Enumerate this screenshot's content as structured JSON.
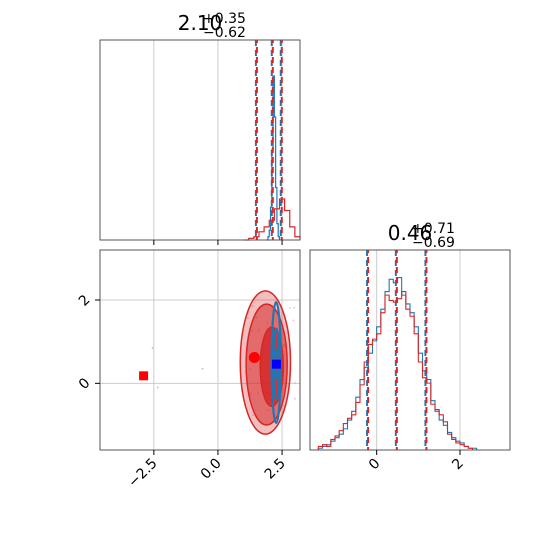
{
  "colors": {
    "truth_red": "#d62728",
    "samples_blue": "#1f77b4",
    "contour_fill_red": "#d62728",
    "marker_red": "#ff0000",
    "marker_blue": "#0000ff",
    "grid": "#cccccc",
    "axes": "#555555"
  },
  "chart_data": {
    "type": "corner",
    "parameters": [
      {
        "title_main": "2.10",
        "title_upper": "+0.35",
        "title_lower": "−0.62",
        "range": [
          -4.6,
          3.2
        ],
        "ticks": [
          -2.5,
          0.0,
          2.5
        ],
        "tick_labels": [
          "−2.5",
          "0.0",
          "2.5"
        ],
        "quantile_lines": [
          1.48,
          2.1,
          2.45
        ]
      },
      {
        "title_main": "0.46",
        "title_upper": "+0.71",
        "title_lower": "−0.69",
        "range": [
          -1.6,
          3.2
        ],
        "ticks": [
          0,
          2
        ],
        "tick_labels": [
          "0",
          "2"
        ],
        "quantile_lines": [
          -0.23,
          0.46,
          1.17
        ]
      }
    ],
    "hist_1d_x": {
      "blue": {
        "x": [
          1.9,
          1.95,
          2.0,
          2.05,
          2.1,
          2.15,
          2.2,
          2.25,
          2.3,
          2.35,
          2.4
        ],
        "density": [
          0.0,
          0.02,
          0.06,
          0.2,
          0.55,
          1.0,
          0.75,
          0.32,
          0.1,
          0.02,
          0.0
        ]
      },
      "red": {
        "x": [
          1.0,
          1.2,
          1.4,
          1.6,
          1.8,
          2.0,
          2.2,
          2.4,
          2.6,
          2.8,
          3.0,
          3.2
        ],
        "density": [
          0.0,
          0.01,
          0.02,
          0.05,
          0.08,
          0.12,
          0.19,
          0.25,
          0.18,
          0.08,
          0.02,
          0.0
        ]
      }
    },
    "hist_1d_y": {
      "bins": [
        -1.5,
        -1.4,
        -1.3,
        -1.2,
        -1.1,
        -1.0,
        -0.9,
        -0.8,
        -0.7,
        -0.6,
        -0.5,
        -0.4,
        -0.3,
        -0.2,
        -0.1,
        0.0,
        0.1,
        0.2,
        0.3,
        0.4,
        0.5,
        0.6,
        0.7,
        0.8,
        0.9,
        1.0,
        1.1,
        1.2,
        1.3,
        1.4,
        1.5,
        1.6,
        1.7,
        1.8,
        1.9,
        2.0,
        2.1,
        2.2,
        2.3,
        2.4,
        2.5
      ],
      "blue": [
        0.0,
        0.01,
        0.02,
        0.03,
        0.05,
        0.07,
        0.09,
        0.12,
        0.17,
        0.22,
        0.3,
        0.4,
        0.47,
        0.55,
        0.62,
        0.7,
        0.8,
        0.9,
        0.97,
        0.95,
        0.98,
        0.88,
        0.83,
        0.78,
        0.7,
        0.55,
        0.45,
        0.4,
        0.28,
        0.22,
        0.17,
        0.14,
        0.1,
        0.07,
        0.05,
        0.04,
        0.02,
        0.01,
        0.01,
        0.0,
        0.0
      ],
      "red": [
        0.0,
        0.02,
        0.03,
        0.02,
        0.06,
        0.08,
        0.11,
        0.15,
        0.18,
        0.2,
        0.27,
        0.37,
        0.5,
        0.6,
        0.63,
        0.66,
        0.78,
        0.88,
        0.85,
        0.84,
        0.86,
        0.9,
        0.8,
        0.76,
        0.66,
        0.5,
        0.41,
        0.38,
        0.26,
        0.23,
        0.2,
        0.16,
        0.09,
        0.06,
        0.04,
        0.03,
        0.02,
        0.01,
        0.0,
        0.0,
        0.0
      ]
    },
    "scatter_2d": {
      "blue_contours": [
        {
          "cx": 2.28,
          "cy": 0.46,
          "rx": 0.06,
          "ry": 0.35
        },
        {
          "cx": 2.28,
          "cy": 0.46,
          "rx": 0.12,
          "ry": 0.85
        },
        {
          "cx": 2.27,
          "cy": 0.5,
          "rx": 0.18,
          "ry": 1.45
        }
      ],
      "red_contours": [
        {
          "cx": 2.1,
          "cy": 0.4,
          "rx": 0.45,
          "ry": 0.95,
          "opacity": 0.85
        },
        {
          "cx": 1.9,
          "cy": 0.45,
          "rx": 0.8,
          "ry": 1.45,
          "opacity": 0.55
        },
        {
          "cx": 1.85,
          "cy": 0.5,
          "rx": 0.98,
          "ry": 1.72,
          "opacity": 0.3
        }
      ],
      "markers": [
        {
          "label": "red-square-outlier",
          "x": -2.9,
          "y": 0.18,
          "color": "#ff0000",
          "shape": "square"
        },
        {
          "label": "red-dot",
          "x": 1.42,
          "y": 0.62,
          "color": "#ff0000",
          "shape": "circle"
        },
        {
          "label": "blue-square",
          "x": 2.28,
          "y": 0.46,
          "color": "#0000ff",
          "shape": "square"
        }
      ],
      "y_range": [
        -1.6,
        3.2
      ],
      "y_ticks": [
        0,
        2
      ],
      "y_tick_labels": [
        "0",
        "2"
      ]
    }
  }
}
